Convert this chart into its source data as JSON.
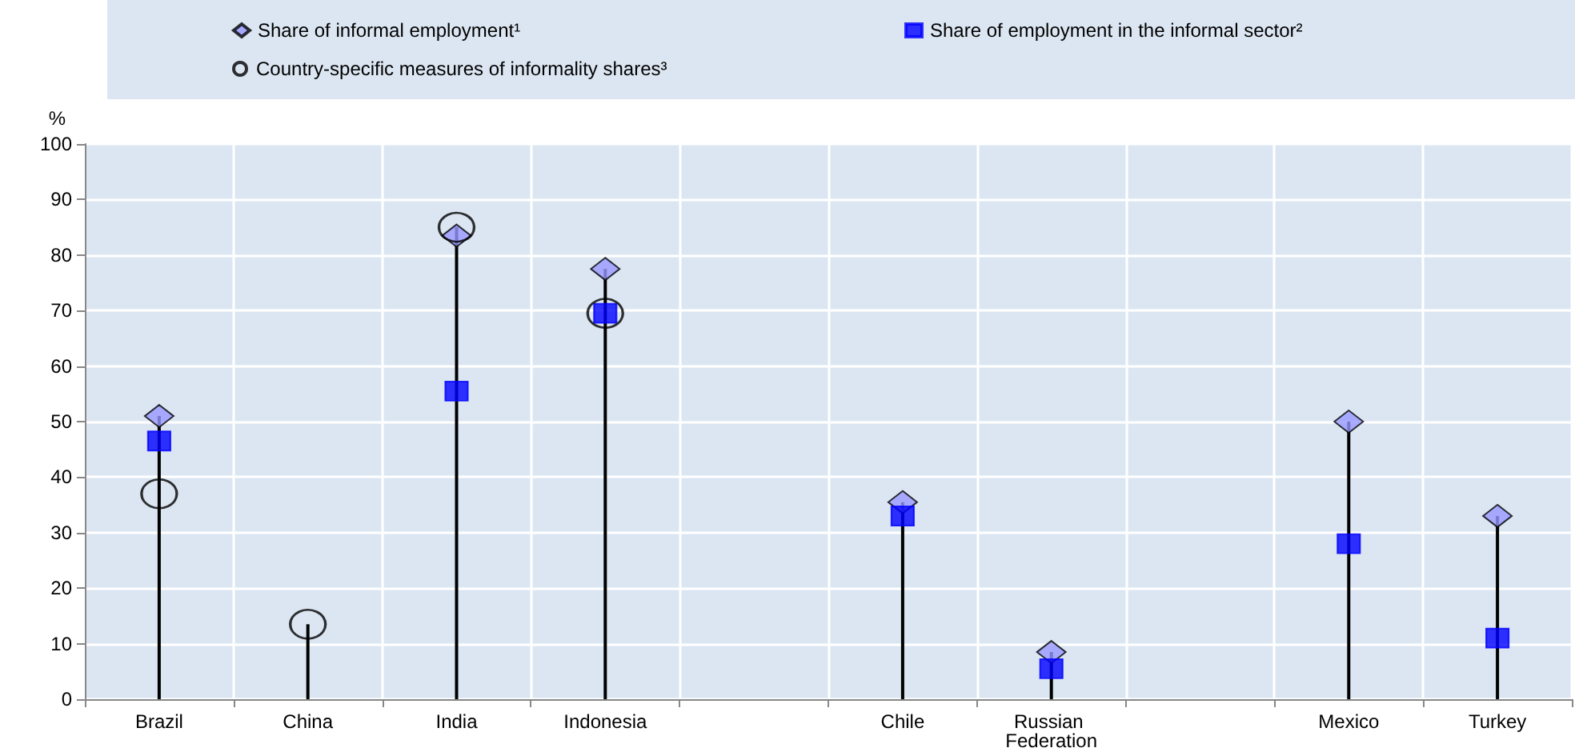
{
  "chart_data": {
    "type": "lollipop",
    "ylabel": "%",
    "categories": [
      "Brazil",
      "China",
      "India",
      "Indonesia",
      null,
      "Chile",
      "Russian Federation",
      null,
      "Mexico",
      "Turkey"
    ],
    "series": [
      {
        "name": "Share of informal employment¹",
        "color": "#9999ff",
        "marker": "diamond",
        "values": [
          51,
          null,
          83.5,
          77.5,
          null,
          35.5,
          8.5,
          null,
          50,
          33
        ]
      },
      {
        "name": "Share of employment in the informal sector²",
        "color": "#0000ff",
        "marker": "square",
        "values": [
          46.5,
          null,
          55.5,
          69.5,
          null,
          33,
          5.5,
          null,
          28,
          11
        ]
      },
      {
        "name": "Country-specific measures of informality shares³",
        "color": "#000000",
        "marker": "circle",
        "values": [
          37,
          13.5,
          85,
          69.5,
          null,
          null,
          null,
          null,
          null,
          null
        ]
      }
    ],
    "ylim": [
      0,
      100
    ],
    "yticks": [
      0,
      10,
      20,
      30,
      40,
      50,
      60,
      70,
      80,
      90,
      100
    ],
    "grid": true,
    "legend": "top"
  }
}
